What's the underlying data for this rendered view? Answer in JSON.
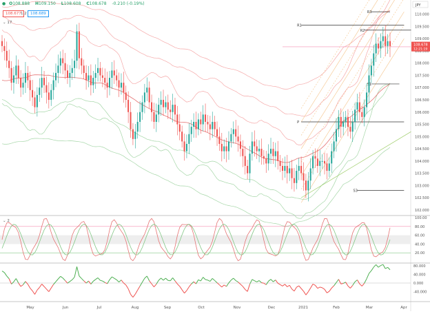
{
  "header": {
    "ohlc": [
      {
        "k": "O",
        "v": "108.888"
      },
      {
        "k": "H",
        "v": "109.150"
      },
      {
        "k": "L",
        "v": "108.608"
      },
      {
        "k": "C",
        "v": "108.678"
      }
    ],
    "change": "-0.210 (-0.19%)",
    "bid": "108.677",
    "spread": "1.2",
    "ask": "108.689",
    "indicator_label": "17"
  },
  "colors": {
    "up": "#26a69a",
    "down": "#ef5350",
    "ohlc_green": "#27a069",
    "bid_red": "#ef5350",
    "ask_blue": "#2196f3",
    "band_red": "#f5a8a8",
    "band_green": "#a5d6a7",
    "ma_red": "#e57373",
    "stoch_k": "#e57373",
    "stoch_d": "#81c784",
    "fib": "#f5c48a",
    "osc_up": "#4caf50",
    "osc_down": "#ef5350",
    "price_tag": "#ef5350"
  },
  "price_axis": {
    "ticks": [
      "110.000",
      "109.500",
      "109.000",
      "108.500",
      "108.000",
      "107.500",
      "107.000",
      "106.500",
      "106.000",
      "105.500",
      "105.000",
      "104.500",
      "104.000",
      "103.500",
      "103.000",
      "102.500",
      "102.000"
    ],
    "last_price": "108.678",
    "countdown": "12:21:19",
    "symbol": "JPY"
  },
  "pivots": {
    "R1": "R1",
    "R3": "R3",
    "P": "P",
    "S1": "S1",
    "S3": "S3",
    "R2": "R2"
  },
  "stoch_axis": {
    "ticks": [
      "100.00",
      "80.00",
      "60.00",
      "40.00",
      "20.00"
    ],
    "panel_label": "2"
  },
  "osc_axis": {
    "ticks": [
      "80.000",
      "40.000",
      "0.000",
      "-40.000"
    ]
  },
  "x_axis": {
    "ticks": [
      "May",
      "Jun",
      "Jul",
      "Aug",
      "Sep",
      "Oct",
      "Nov",
      "Dec",
      "2021",
      "Feb",
      "Mar",
      "Apr"
    ]
  },
  "chart_data": {
    "type": "candlestick",
    "title": "",
    "y_range": [
      101.8,
      110.3
    ],
    "close": [
      108.7,
      108.5,
      108.1,
      107.8,
      107.2,
      107.5,
      107.9,
      107.4,
      107.0,
      107.2,
      107.6,
      107.3,
      106.9,
      106.6,
      106.2,
      106.7,
      107.0,
      107.4,
      107.1,
      106.8,
      106.5,
      106.9,
      107.3,
      107.6,
      107.9,
      108.2,
      108.0,
      107.7,
      107.4,
      107.6,
      107.8,
      108.1,
      109.3,
      108.2,
      107.9,
      107.6,
      107.3,
      107.5,
      107.1,
      107.4,
      107.6,
      107.8,
      107.5,
      107.4,
      107.2,
      107.0,
      107.4,
      107.7,
      107.5,
      107.3,
      107.0,
      107.2,
      106.8,
      106.5,
      106.0,
      105.3,
      104.9,
      105.2,
      105.6,
      106.0,
      106.4,
      106.8,
      107.0,
      106.4,
      106.0,
      105.6,
      105.9,
      106.3,
      106.5,
      106.2,
      106.4,
      106.1,
      106.0,
      106.3,
      105.9,
      105.5,
      105.2,
      104.8,
      104.4,
      104.7,
      105.1,
      105.4,
      105.6,
      105.3,
      105.7,
      105.5,
      105.9,
      105.6,
      105.5,
      105.3,
      105.6,
      105.3,
      105.0,
      104.7,
      104.4,
      104.6,
      104.4,
      104.8,
      105.1,
      105.3,
      105.0,
      104.8,
      104.5,
      104.2,
      103.8,
      103.5,
      104.3,
      104.8,
      104.6,
      104.4,
      104.5,
      104.2,
      104.1,
      103.9,
      104.3,
      104.5,
      104.2,
      104.4,
      104.0,
      103.8,
      103.6,
      103.8,
      103.5,
      103.7,
      103.3,
      103.1,
      103.6,
      103.8,
      103.5,
      103.2,
      102.8,
      103.2,
      103.7,
      104.2,
      104.1,
      103.8,
      104.0,
      104.0,
      103.9,
      103.6,
      103.9,
      104.4,
      104.8,
      105.3,
      105.8,
      105.4,
      105.6,
      105.8,
      105.4,
      105.2,
      105.6,
      106.1,
      106.4,
      106.0,
      105.8,
      106.2,
      106.8,
      107.5,
      107.9,
      108.4,
      108.8,
      108.6,
      108.9,
      109.1,
      108.7,
      108.9,
      108.7
    ],
    "x_ticks": [
      "May",
      "Jun",
      "Jul",
      "Aug",
      "Sep",
      "Oct",
      "Nov",
      "Dec",
      "2021",
      "Feb",
      "Mar",
      "Apr"
    ]
  }
}
